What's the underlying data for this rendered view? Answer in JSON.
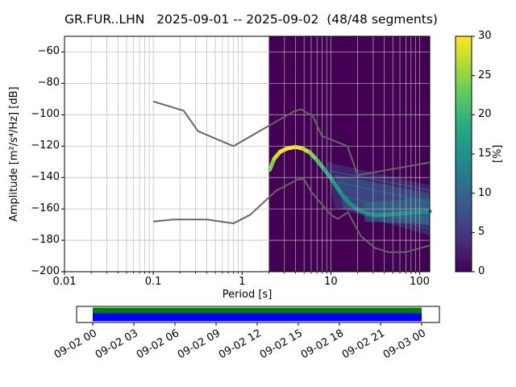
{
  "title": "GR.FUR..LHN   2025-09-01 -- 2025-09-02  (48/48 segments)",
  "axes": {
    "xlabel": "Period [s]",
    "ylabel": "Amplitude [m²/s⁴/Hz] [dB]",
    "x_ticks": [
      {
        "v": 0.01,
        "label": "0.01"
      },
      {
        "v": 0.1,
        "label": "0.1"
      },
      {
        "v": 1,
        "label": "1"
      },
      {
        "v": 10,
        "label": "10"
      },
      {
        "v": 100,
        "label": "100"
      }
    ],
    "y_ticks": [
      {
        "v": -60,
        "label": "−60"
      },
      {
        "v": -80,
        "label": "−80"
      },
      {
        "v": -100,
        "label": "−100"
      },
      {
        "v": -120,
        "label": "−120"
      },
      {
        "v": -140,
        "label": "−140"
      },
      {
        "v": -160,
        "label": "−160"
      },
      {
        "v": -180,
        "label": "−180"
      },
      {
        "v": -200,
        "label": "−200"
      }
    ]
  },
  "colorbar": {
    "label": "[%]",
    "min": 0,
    "max": 30,
    "ticks": [
      {
        "v": 0,
        "label": "0"
      },
      {
        "v": 5,
        "label": "5"
      },
      {
        "v": 10,
        "label": "10"
      },
      {
        "v": 15,
        "label": "15"
      },
      {
        "v": 20,
        "label": "20"
      },
      {
        "v": 25,
        "label": "25"
      },
      {
        "v": 30,
        "label": "30"
      }
    ],
    "viridis_stops": [
      "#440154",
      "#472c7a",
      "#3b518b",
      "#2c718e",
      "#21908d",
      "#27ad81",
      "#5cc863",
      "#aadc32",
      "#fde725"
    ]
  },
  "chart_data": {
    "type": "heatmap",
    "subtype": "ppsd-probabilistic-power-spectral-density",
    "title": "GR.FUR..LHN   2025-09-01 -- 2025-09-02  (48/48 segments)",
    "xlabel": "Period [s]",
    "ylabel": "Amplitude [m²/s⁴/Hz] [dB]",
    "xscale": "log",
    "xlim": [
      0.01,
      130
    ],
    "ylim": [
      -200,
      -50
    ],
    "grid": true,
    "colorbar_label": "[%]",
    "colorbar_range": [
      0,
      30
    ],
    "histogram_period_range": [
      2.0,
      130
    ],
    "noise_model_high": {
      "name": "Peterson high noise model (NHNM)",
      "periods": [
        0.1,
        0.22,
        0.32,
        0.8,
        3.8,
        4.6,
        6.3,
        7.9,
        15.4,
        20.0,
        130.0
      ],
      "db": [
        -91.5,
        -97.4,
        -110.5,
        -120.0,
        -98.0,
        -96.5,
        -101.0,
        -113.5,
        -120.0,
        -138.5,
        -130.4
      ]
    },
    "noise_model_low": {
      "name": "Peterson low noise model (NLNM)",
      "periods": [
        0.1,
        0.17,
        0.4,
        0.8,
        1.24,
        2.4,
        4.3,
        5.0,
        6.0,
        10.0,
        12.0,
        15.6,
        21.9,
        31.6,
        45.0,
        70.0,
        101.0,
        130.0
      ],
      "db": [
        -168.0,
        -166.7,
        -166.7,
        -169.2,
        -163.7,
        -148.6,
        -141.1,
        -141.1,
        -149.0,
        -163.8,
        -166.3,
        -162.1,
        -177.5,
        -185.0,
        -187.5,
        -187.5,
        -185.0,
        -183.3
      ]
    },
    "ppsd_mode": {
      "name": "PPSD highest-probability ridge",
      "periods": [
        2.05,
        2.3,
        2.7,
        3.2,
        4.0,
        4.8,
        5.8,
        7.0,
        8.5,
        10.5,
        13,
        16,
        20,
        26,
        34,
        45,
        60,
        80,
        105,
        130
      ],
      "db": [
        -135,
        -128,
        -123.5,
        -121.5,
        -120.5,
        -121.5,
        -124,
        -129,
        -135,
        -142,
        -150,
        -156,
        -160.5,
        -163,
        -164,
        -163.5,
        -163,
        -162.5,
        -162,
        -161.5
      ],
      "percent": [
        22,
        26,
        29,
        30,
        30,
        29,
        26,
        22,
        19,
        17,
        15,
        14,
        14,
        15,
        16,
        16,
        15,
        15,
        14,
        14
      ]
    },
    "spread_regions": [
      {
        "points": [
          [
            9,
            -130
          ],
          [
            130,
            -145
          ],
          [
            130,
            -177
          ],
          [
            11,
            -159
          ]
        ],
        "percent": 6,
        "opacity": 0.55
      },
      {
        "points": [
          [
            11,
            -138
          ],
          [
            130,
            -150
          ],
          [
            130,
            -171
          ],
          [
            14,
            -160
          ]
        ],
        "percent": 9,
        "opacity": 0.6
      },
      {
        "points": [
          [
            24,
            -156
          ],
          [
            130,
            -153
          ],
          [
            130,
            -170
          ],
          [
            24,
            -168
          ]
        ],
        "percent": 11,
        "opacity": 0.6
      }
    ],
    "spread_lines": [
      {
        "points": [
          [
            10,
            -136
          ],
          [
            130,
            -148
          ]
        ],
        "percent": 10
      },
      {
        "points": [
          [
            12,
            -143
          ],
          [
            130,
            -156
          ]
        ],
        "percent": 11
      },
      {
        "points": [
          [
            15,
            -152
          ],
          [
            130,
            -168
          ]
        ],
        "percent": 10
      },
      {
        "points": [
          [
            18,
            -158
          ],
          [
            130,
            -173
          ]
        ],
        "percent": 8
      }
    ]
  },
  "timeline": {
    "tick_labels": [
      "09-02 00",
      "09-02 03",
      "09-02 06",
      "09-02 09",
      "09-02 12",
      "09-02 15",
      "09-02 18",
      "09-02 21",
      "09-03 00"
    ],
    "processed_color": "#008000",
    "data_color": "#0000ff"
  }
}
